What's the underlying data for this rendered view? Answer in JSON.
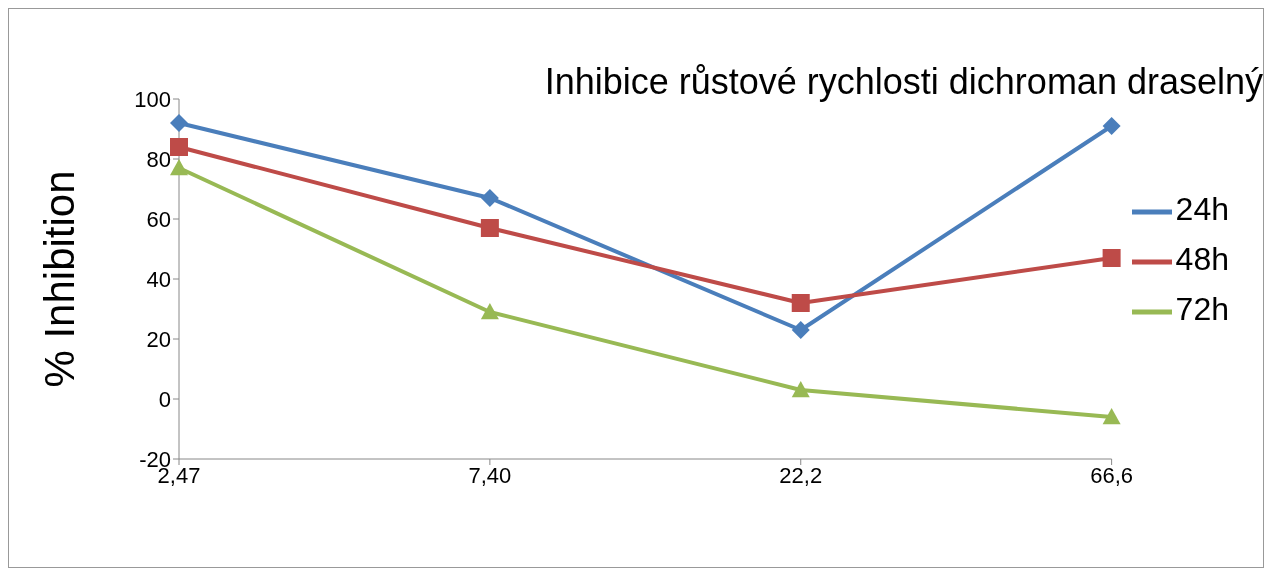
{
  "chart_data": {
    "type": "line",
    "title": "Inhibice růstové rychlosti dichroman draselný",
    "ylabel": "% Inhibition",
    "categories": [
      "2,47",
      "7,40",
      "22,2",
      "66,6"
    ],
    "series": [
      {
        "name": "24h",
        "color": "#4a7ebb",
        "marker": "diamond",
        "values": [
          92,
          67,
          23,
          91
        ]
      },
      {
        "name": "48h",
        "color": "#be4b48",
        "marker": "square",
        "values": [
          84,
          57,
          32,
          47
        ]
      },
      {
        "name": "72h",
        "color": "#98b954",
        "marker": "triangle",
        "values": [
          77,
          29,
          3,
          -6
        ]
      }
    ],
    "ylim": [
      -20,
      100
    ],
    "yticks": [
      -20,
      0,
      20,
      40,
      60,
      80,
      100
    ],
    "grid": false,
    "legend": "right"
  }
}
